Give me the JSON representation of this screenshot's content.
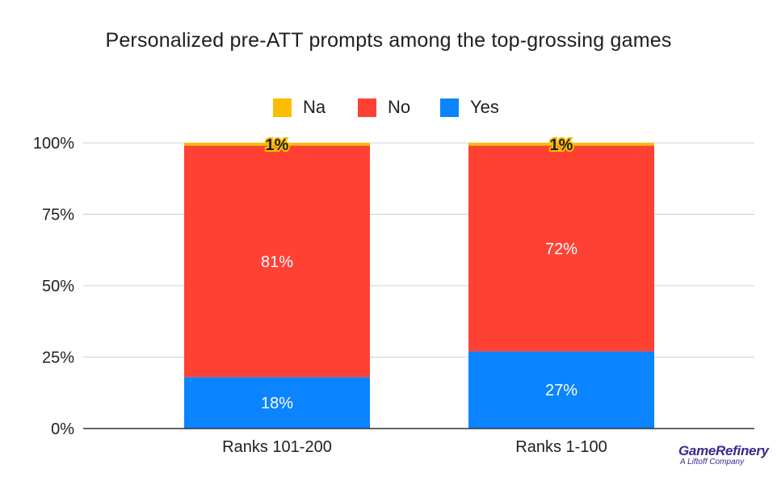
{
  "chart_data": {
    "type": "bar",
    "stacked": true,
    "title": "Personalized pre-ATT prompts among the top-grossing games",
    "categories": [
      "Ranks 101-200",
      "Ranks 1-100"
    ],
    "series": [
      {
        "name": "Yes",
        "color": "#0a84ff",
        "values": [
          18,
          27
        ],
        "labels": [
          "18%",
          "27%"
        ]
      },
      {
        "name": "No",
        "color": "#ff4133",
        "values": [
          81,
          72
        ],
        "labels": [
          "81%",
          "72%"
        ]
      },
      {
        "name": "Na",
        "color": "#fbbc04",
        "values": [
          1,
          1
        ],
        "labels": [
          "1%",
          "1%"
        ]
      }
    ],
    "legend_order": [
      "Na",
      "No",
      "Yes"
    ],
    "legend_position": "top",
    "ylim": [
      0,
      100
    ],
    "yticks": [
      "0%",
      "25%",
      "50%",
      "75%",
      "100%"
    ],
    "grid": true,
    "xlabel": "",
    "ylabel": ""
  },
  "branding": {
    "name": "GameRefinery",
    "tagline": "A Liftoff Company"
  }
}
